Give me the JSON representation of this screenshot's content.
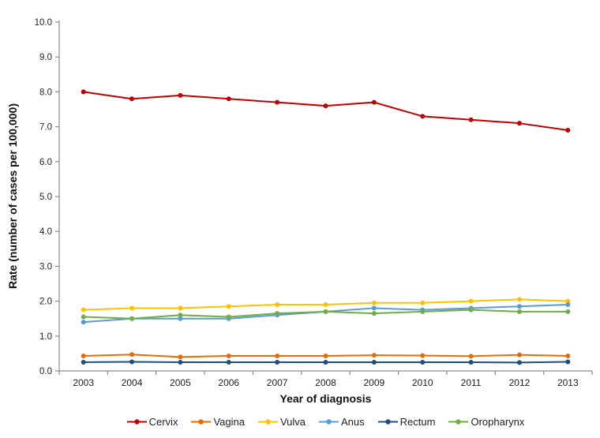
{
  "chart_data": {
    "type": "line",
    "title": "",
    "xlabel": "Year of diagnosis",
    "ylabel": "Rate (number of cases per 100,000)",
    "x": [
      2003,
      2004,
      2005,
      2006,
      2007,
      2008,
      2009,
      2010,
      2011,
      2012,
      2013
    ],
    "ylim": [
      0,
      10
    ],
    "ytick_step": 1,
    "ytick_decimals": 1,
    "grid": false,
    "legend_position": "bottom",
    "axis_color": "#8C8C8C",
    "text_color": "#1F1F1F",
    "series": [
      {
        "name": "Cervix",
        "color": "#C00000",
        "values": [
          8.0,
          7.8,
          7.9,
          7.8,
          7.7,
          7.6,
          7.7,
          7.3,
          7.2,
          7.1,
          6.9
        ]
      },
      {
        "name": "Vagina",
        "color": "#E26B0A",
        "values": [
          0.43,
          0.47,
          0.4,
          0.43,
          0.43,
          0.43,
          0.45,
          0.44,
          0.42,
          0.46,
          0.43
        ]
      },
      {
        "name": "Vulva",
        "color": "#FFC000",
        "values": [
          1.75,
          1.8,
          1.8,
          1.85,
          1.9,
          1.9,
          1.95,
          1.95,
          2.0,
          2.05,
          2.0
        ]
      },
      {
        "name": "Anus",
        "color": "#5B9BD5",
        "values": [
          1.4,
          1.5,
          1.5,
          1.5,
          1.6,
          1.7,
          1.8,
          1.75,
          1.8,
          1.85,
          1.9
        ]
      },
      {
        "name": "Rectum",
        "color": "#1F4E79",
        "values": [
          0.25,
          0.26,
          0.25,
          0.25,
          0.25,
          0.25,
          0.25,
          0.25,
          0.25,
          0.24,
          0.26
        ]
      },
      {
        "name": "Oropharynx",
        "color": "#70AD47",
        "values": [
          1.55,
          1.5,
          1.6,
          1.55,
          1.65,
          1.7,
          1.65,
          1.7,
          1.75,
          1.7,
          1.7
        ]
      }
    ]
  }
}
